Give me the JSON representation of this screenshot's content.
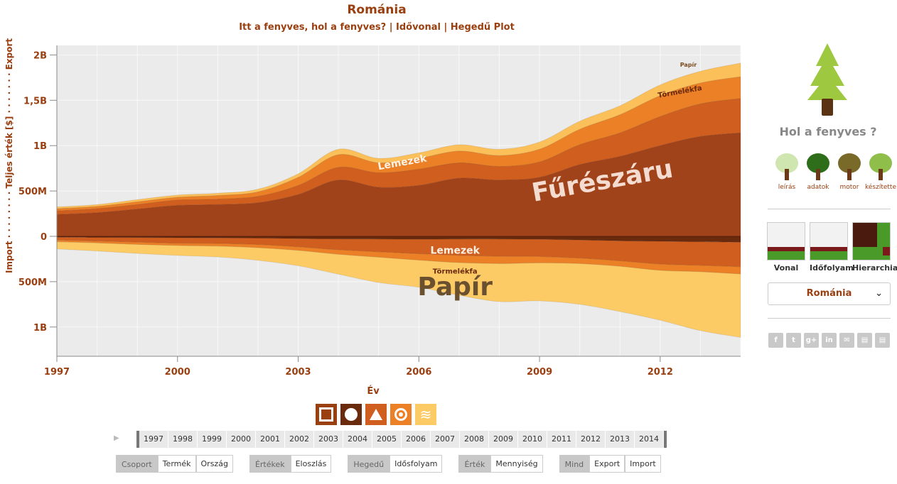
{
  "header": {
    "title": "Románia",
    "subtitle": "Itt a fenyves, hol a fenyves? | Idővonal | Hegedű Plot"
  },
  "chart_data": {
    "type": "area",
    "subtype": "violin streamgraph",
    "ylabel": "Import · · · · · · · · Teljes érték [$] · · · · · · · Export",
    "xlabel": "Év",
    "x_ticks": [
      "1997",
      "2000",
      "2003",
      "2006",
      "2009",
      "2012"
    ],
    "y_ticks": [
      "2B",
      "1,5B",
      "1B",
      "500M",
      "0",
      "500M",
      "1B"
    ],
    "ylim": [
      -1300000000,
      2000000000
    ],
    "grid": true,
    "x": [
      1997,
      1998,
      1999,
      2000,
      2001,
      2002,
      2003,
      2004,
      2005,
      2006,
      2007,
      2008,
      2009,
      2010,
      2011,
      2012,
      2013,
      2014
    ],
    "export_series": [
      {
        "name": "Fűrészáru",
        "color": "#a0421a",
        "values": [
          240,
          260,
          300,
          340,
          350,
          370,
          460,
          620,
          540,
          560,
          640,
          620,
          650,
          790,
          880,
          1000,
          1100,
          1140
        ]
      },
      {
        "name": "Lemezek",
        "color": "#d05e1e",
        "values": [
          40,
          45,
          50,
          60,
          60,
          70,
          100,
          140,
          160,
          180,
          170,
          150,
          170,
          220,
          260,
          320,
          360,
          380
        ]
      },
      {
        "name": "Törmelékfa",
        "color": "#ec8026",
        "values": [
          25,
          25,
          30,
          30,
          40,
          50,
          90,
          140,
          110,
          120,
          130,
          120,
          140,
          170,
          200,
          230,
          230,
          240
        ]
      },
      {
        "name": "Papír",
        "color": "#fcc05a",
        "values": [
          20,
          20,
          25,
          25,
          25,
          30,
          40,
          60,
          50,
          60,
          70,
          70,
          80,
          90,
          100,
          120,
          130,
          150
        ]
      }
    ],
    "import_series": [
      {
        "name": "Fűrészáru",
        "color": "#6a2a0e",
        "values": [
          10,
          12,
          14,
          16,
          18,
          20,
          25,
          28,
          30,
          32,
          30,
          30,
          32,
          40,
          50,
          55,
          60,
          65
        ]
      },
      {
        "name": "Lemezek",
        "color": "#d05e1e",
        "values": [
          30,
          40,
          50,
          60,
          60,
          70,
          90,
          120,
          140,
          160,
          180,
          190,
          190,
          200,
          220,
          250,
          260,
          270
        ]
      },
      {
        "name": "Törmelékfa",
        "color": "#ec8026",
        "values": [
          20,
          20,
          25,
          25,
          30,
          35,
          40,
          50,
          60,
          70,
          80,
          80,
          70,
          60,
          60,
          70,
          70,
          80
        ]
      },
      {
        "name": "Papír",
        "color": "#fdcb66",
        "values": [
          80,
          90,
          100,
          110,
          120,
          140,
          170,
          220,
          280,
          300,
          360,
          420,
          420,
          450,
          500,
          550,
          650,
          700
        ]
      }
    ],
    "value_unit": "M$",
    "labels": [
      {
        "text": "Fűrészáru",
        "year": 2010.6,
        "value": 520
      },
      {
        "text": "Lemezek",
        "year": 2005.6,
        "value": 780
      },
      {
        "text": "Papír",
        "year": 2012.7,
        "value": 1870
      },
      {
        "text": "Törmelékfa",
        "year": 2012.5,
        "value": 1570
      },
      {
        "text": "Lemezek",
        "year": 2006.9,
        "value": -190
      },
      {
        "text": "Törmelékfa",
        "year": 2006.9,
        "value": -410
      },
      {
        "text": "Papír",
        "year": 2006.9,
        "value": -650
      }
    ]
  },
  "toolbar": {
    "chart_icons": [
      "square-icon",
      "circle-icon",
      "triangle-icon",
      "ring-icon",
      "wave-icon"
    ],
    "timeline_years": [
      "1997",
      "1998",
      "1999",
      "2000",
      "2001",
      "2002",
      "2003",
      "2004",
      "2005",
      "2006",
      "2007",
      "2008",
      "2009",
      "2010",
      "2011",
      "2012",
      "2013",
      "2014"
    ],
    "groups": [
      {
        "head": "Csoport",
        "buttons": [
          "Termék",
          "Ország"
        ]
      },
      {
        "head": "Értékek",
        "buttons": [
          "Eloszlás"
        ]
      },
      {
        "head": "Hegedű",
        "buttons": [
          "Idősfolyam"
        ]
      },
      {
        "head": "Érték",
        "buttons": [
          "Mennyiség"
        ]
      },
      {
        "head": "Mind",
        "buttons": [
          "Export",
          "Import"
        ]
      }
    ]
  },
  "sidebar": {
    "title": "Hol a fenyves ?",
    "nav": [
      "leírás",
      "adatok",
      "motor",
      "készítette"
    ],
    "views": [
      "Vonal",
      "Időfolyam",
      "Hierarchia"
    ],
    "country": "Románia",
    "share_icons": [
      "facebook-icon",
      "twitter-icon",
      "googleplus-icon",
      "linkedin-icon",
      "mail-icon",
      "csv-icon",
      "json-icon"
    ]
  },
  "colors": {
    "accent": "#9a3f10",
    "plot_bg": "#ebebeb"
  }
}
